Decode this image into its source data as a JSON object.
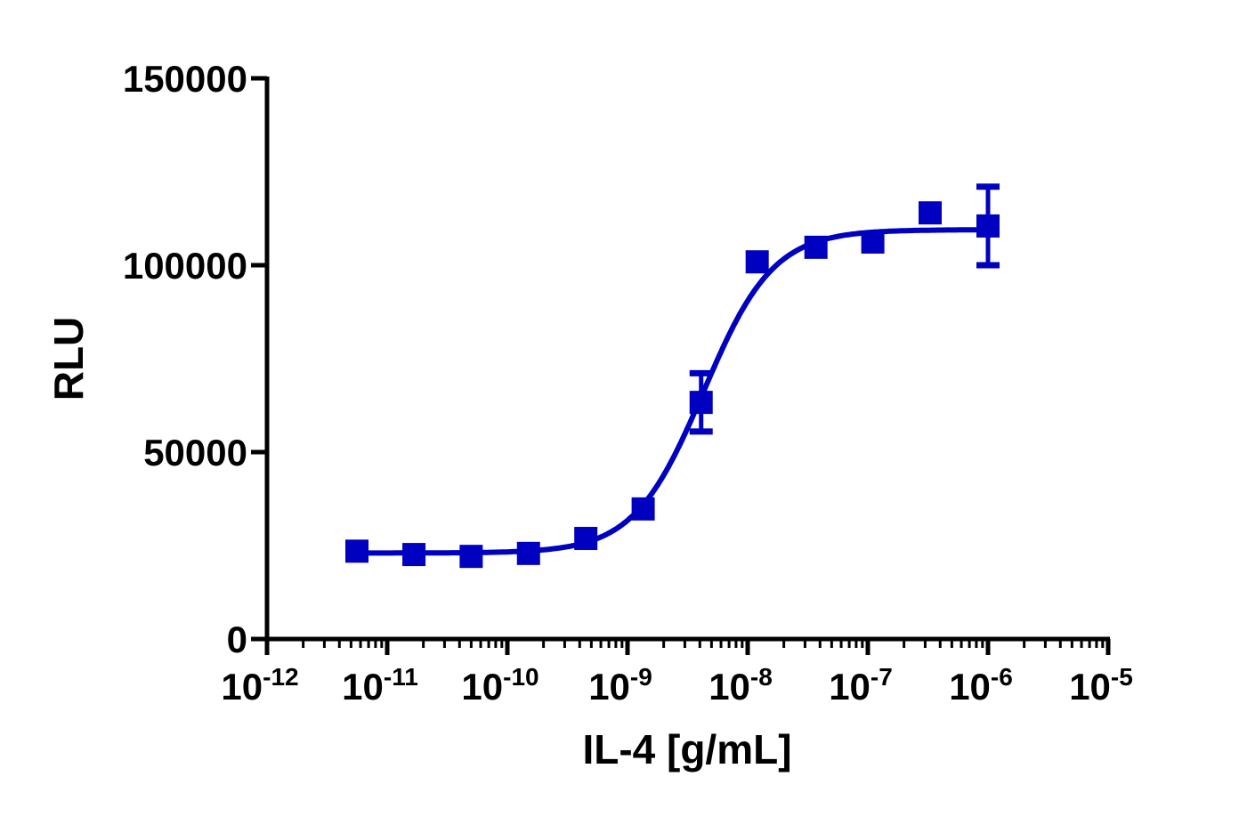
{
  "chart_data": {
    "type": "scatter",
    "title": "",
    "xlabel": "IL-4 [g/mL]",
    "ylabel": "RLU",
    "x_scale": "log",
    "xlim": [
      1e-12,
      1e-05
    ],
    "ylim": [
      0,
      150000
    ],
    "grid": false,
    "legend": "none",
    "x_ticks": [
      {
        "base": "10",
        "exp": "-12"
      },
      {
        "base": "10",
        "exp": "-11"
      },
      {
        "base": "10",
        "exp": "-10"
      },
      {
        "base": "10",
        "exp": "-9"
      },
      {
        "base": "10",
        "exp": "-8"
      },
      {
        "base": "10",
        "exp": "-7"
      },
      {
        "base": "10",
        "exp": "-6"
      },
      {
        "base": "10",
        "exp": "-5"
      }
    ],
    "y_ticks": [
      "0",
      "50000",
      "100000",
      "150000"
    ],
    "color": "#0000C0",
    "series": [
      {
        "x": [
          5.6e-12,
          1.67e-11,
          5e-11,
          1.5e-10,
          4.5e-10,
          1.35e-09,
          4.1e-09,
          1.2e-08,
          3.7e-08,
          1.1e-07,
          3.3e-07,
          1e-06
        ],
        "y": [
          23500,
          22600,
          22100,
          22900,
          26900,
          34800,
          63300,
          100900,
          104800,
          106200,
          114000,
          110500
        ],
        "error": [
          600,
          600,
          600,
          600,
          700,
          800,
          7800,
          1200,
          1000,
          1200,
          1500,
          10500
        ]
      }
    ],
    "fit": {
      "model": "4PL",
      "bottom": 23000,
      "top": 109500,
      "ec50": 4.3e-09,
      "hill": 1.5
    }
  }
}
